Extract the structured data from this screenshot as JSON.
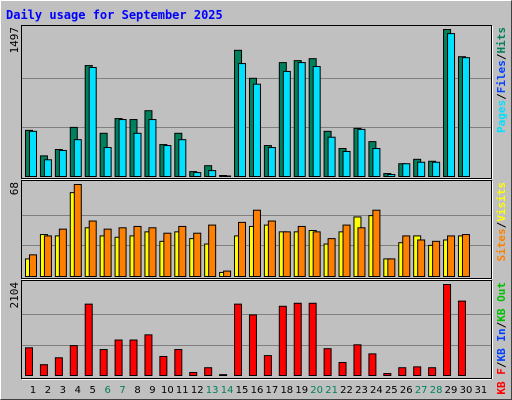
{
  "title": "Daily usage for September 2025",
  "title_color": "#0000ff",
  "legend_separator": "/",
  "chart_data": [
    {
      "type": "bar",
      "ylim": [
        0,
        1497
      ],
      "yticks": [
        1497
      ],
      "series": [
        {
          "name": "Hits",
          "color": "#00805c",
          "values": [
            470,
            210,
            275,
            500,
            1130,
            440,
            590,
            580,
            670,
            325,
            440,
            50,
            110,
            10,
            1285,
            1000,
            315,
            1160,
            1180,
            1200,
            460,
            285,
            490,
            355,
            30,
            130,
            175,
            155,
            1497,
            1220,
            0
          ]
        },
        {
          "name": "Pages",
          "color": "#00e0ff",
          "values": [
            460,
            170,
            265,
            375,
            1110,
            295,
            580,
            440,
            580,
            315,
            375,
            40,
            60,
            5,
            1150,
            940,
            295,
            1070,
            1160,
            1120,
            400,
            255,
            480,
            285,
            20,
            130,
            145,
            145,
            1455,
            1210,
            0
          ]
        }
      ],
      "other_legend": [
        {
          "name": "Files",
          "color": "#0040ff"
        }
      ]
    },
    {
      "type": "bar",
      "ylim": [
        0,
        68
      ],
      "yticks": [
        68
      ],
      "series": [
        {
          "name": "Visits",
          "color": "#ffff00",
          "values": [
            13,
            31,
            30,
            62,
            36,
            30,
            29,
            30,
            33,
            26,
            33,
            28,
            24,
            3,
            30,
            37,
            38,
            33,
            33,
            34,
            24,
            33,
            44,
            45,
            13,
            25,
            30,
            23,
            27,
            30,
            0
          ]
        },
        {
          "name": "Sites",
          "color": "#ff8000",
          "values": [
            16,
            30,
            35,
            68,
            41,
            35,
            36,
            37,
            36,
            32,
            37,
            32,
            38,
            4,
            40,
            49,
            41,
            33,
            37,
            33,
            28,
            38,
            36,
            49,
            13,
            30,
            27,
            26,
            30,
            31,
            0
          ]
        }
      ],
      "other_legend": []
    },
    {
      "type": "bar",
      "ylim": [
        0,
        2104
      ],
      "yticks": [
        2104
      ],
      "series": [
        {
          "name": "KB F",
          "color": "#ff0000",
          "values": [
            640,
            250,
            410,
            690,
            1650,
            600,
            820,
            820,
            940,
            440,
            600,
            70,
            180,
            20,
            1650,
            1400,
            460,
            1600,
            1670,
            1670,
            620,
            300,
            710,
            500,
            45,
            180,
            200,
            180,
            2104,
            1720,
            0
          ]
        }
      ],
      "other_legend": [
        {
          "name": "KB In",
          "color": "#0040ff"
        },
        {
          "name": "KB Out",
          "color": "#00c000"
        }
      ],
      "categories": [
        "1",
        "2",
        "3",
        "4",
        "5",
        "6",
        "7",
        "8",
        "9",
        "10",
        "11",
        "12",
        "13",
        "14",
        "15",
        "16",
        "17",
        "18",
        "19",
        "20",
        "21",
        "22",
        "23",
        "24",
        "25",
        "26",
        "27",
        "28",
        "29",
        "30",
        "31"
      ],
      "category_colors": [
        "#000000",
        "#000000",
        "#000000",
        "#000000",
        "#000000",
        "#00805c",
        "#00805c",
        "#000000",
        "#000000",
        "#000000",
        "#000000",
        "#000000",
        "#00805c",
        "#00805c",
        "#000000",
        "#000000",
        "#000000",
        "#000000",
        "#000000",
        "#00805c",
        "#00805c",
        "#000000",
        "#000000",
        "#000000",
        "#000000",
        "#000000",
        "#00805c",
        "#00805c",
        "#000000",
        "#000000",
        "#000000"
      ]
    }
  ]
}
